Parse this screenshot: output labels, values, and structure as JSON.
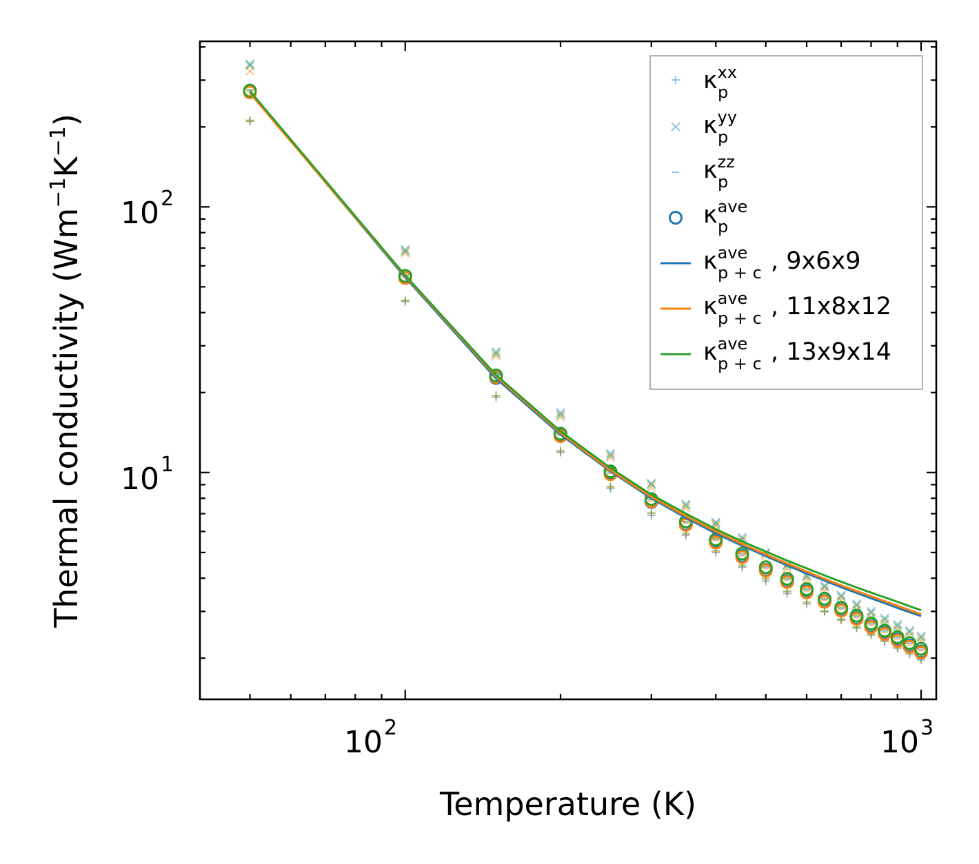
{
  "chart_data": {
    "type": "scatter",
    "xscale": "log",
    "yscale": "log",
    "xlabel": "Temperature (K)",
    "ylabel": "Thermal conductivity (Wm",
    "ylabel_parts": [
      "Thermal conductivity (Wm",
      "−1",
      "K",
      "−1",
      ")"
    ],
    "xlim": [
      40,
      1070
    ],
    "ylim": [
      1.4,
      420
    ],
    "xticks": [
      {
        "base": "10",
        "exp": "2",
        "value": 100
      },
      {
        "base": "10",
        "exp": "3",
        "value": 1000
      }
    ],
    "yticks": [
      {
        "base": "10",
        "exp": "1",
        "value": 10
      },
      {
        "base": "10",
        "exp": "2",
        "value": 100
      }
    ],
    "temperatures": [
      50,
      100,
      150,
      200,
      250,
      300,
      350,
      400,
      450,
      500,
      550,
      600,
      650,
      700,
      750,
      800,
      850,
      900,
      950,
      1000
    ],
    "run_colors": [
      "#1f77b4",
      "#ff7f0e",
      "#2ca02c"
    ],
    "run_names": [
      "9x6x9",
      "11x8x12",
      "13x9x14"
    ],
    "series": [
      {
        "name": "kappa_xx",
        "marker": "plus",
        "runs": [
          [
            210,
            44,
            19.2,
            11.9,
            8.7,
            6.9,
            5.8,
            5.0,
            4.4,
            3.9,
            3.5,
            3.2,
            3.0,
            2.78,
            2.6,
            2.44,
            2.31,
            2.18,
            2.07,
            1.97
          ],
          [
            210,
            44.3,
            19.4,
            12.0,
            8.8,
            7.0,
            5.85,
            5.03,
            4.43,
            3.95,
            3.55,
            3.22,
            2.98,
            2.78,
            2.6,
            2.45,
            2.32,
            2.19,
            2.09,
            1.99
          ],
          [
            212,
            44.5,
            19.5,
            12.1,
            8.85,
            7.05,
            5.9,
            5.08,
            4.48,
            4.0,
            3.58,
            3.26,
            3.01,
            2.81,
            2.62,
            2.47,
            2.34,
            2.21,
            2.1,
            2.0
          ]
        ]
      },
      {
        "name": "kappa_yy",
        "marker": "x",
        "runs": [
          [
            345,
            69,
            28.5,
            16.8,
            11.8,
            9.1,
            7.6,
            6.5,
            5.7,
            5.0,
            4.5,
            4.1,
            3.75,
            3.45,
            3.2,
            3.0,
            2.83,
            2.68,
            2.54,
            2.42
          ],
          [
            325,
            67,
            27.5,
            16.2,
            11.4,
            8.8,
            7.35,
            6.3,
            5.5,
            4.85,
            4.35,
            3.95,
            3.6,
            3.3,
            3.05,
            2.85,
            2.7,
            2.55,
            2.43,
            2.32
          ],
          [
            340,
            68,
            28.0,
            16.5,
            11.6,
            9.0,
            7.5,
            6.4,
            5.6,
            4.95,
            4.45,
            4.05,
            3.7,
            3.4,
            3.15,
            2.95,
            2.78,
            2.63,
            2.5,
            2.38
          ]
        ]
      },
      {
        "name": "kappa_zz",
        "marker": "hline",
        "runs": [
          [
            275,
            55,
            23.2,
            13.9,
            10.0,
            7.9,
            6.5,
            5.6,
            4.9,
            4.4,
            3.97,
            3.62,
            3.33,
            3.08,
            2.87,
            2.69,
            2.53,
            2.39,
            2.27,
            2.16
          ],
          [
            272,
            54.5,
            23.0,
            13.8,
            9.9,
            7.8,
            6.45,
            5.55,
            4.85,
            4.35,
            3.92,
            3.58,
            3.3,
            3.05,
            2.84,
            2.66,
            2.5,
            2.36,
            2.24,
            2.13
          ],
          [
            276,
            55.5,
            23.4,
            14.0,
            10.1,
            7.95,
            6.55,
            5.65,
            4.95,
            4.45,
            4.0,
            3.65,
            3.36,
            3.11,
            2.9,
            2.72,
            2.56,
            2.42,
            2.3,
            2.19
          ]
        ]
      },
      {
        "name": "kappa_ave",
        "marker": "circle",
        "runs": [
          [
            272,
            54.5,
            22.7,
            13.8,
            9.95,
            7.75,
            6.4,
            5.5,
            4.85,
            4.3,
            3.9,
            3.57,
            3.28,
            3.04,
            2.83,
            2.64,
            2.49,
            2.35,
            2.23,
            2.12
          ],
          [
            270,
            54,
            22.9,
            13.7,
            9.85,
            7.8,
            6.35,
            5.45,
            4.8,
            4.27,
            3.87,
            3.54,
            3.26,
            3.02,
            2.81,
            2.62,
            2.47,
            2.33,
            2.21,
            2.1
          ],
          [
            274,
            55,
            23.2,
            14.0,
            10.1,
            7.95,
            6.55,
            5.6,
            4.95,
            4.4,
            3.98,
            3.64,
            3.35,
            3.1,
            2.89,
            2.7,
            2.54,
            2.4,
            2.28,
            2.17
          ]
        ]
      },
      {
        "name": "kappa_pc_9x6x9",
        "marker": "line",
        "color": "#1f77b4",
        "values": [
          270,
          54.2,
          22.6,
          13.9,
          10.1,
          8.0,
          6.75,
          5.9,
          5.3,
          4.85,
          4.47,
          4.17,
          3.92,
          3.7,
          3.52,
          3.36,
          3.22,
          3.09,
          2.98,
          2.88
        ]
      },
      {
        "name": "kappa_pc_11x8x12",
        "marker": "line",
        "color": "#ff7f0e",
        "values": [
          268,
          54.8,
          23.0,
          14.1,
          10.2,
          8.1,
          6.85,
          6.0,
          5.38,
          4.92,
          4.54,
          4.24,
          3.98,
          3.76,
          3.58,
          3.42,
          3.28,
          3.15,
          3.03,
          2.93
        ]
      },
      {
        "name": "kappa_pc_13x9x14",
        "marker": "line",
        "color": "#2ca02c",
        "values": [
          273,
          55.2,
          23.3,
          14.3,
          10.4,
          8.25,
          7.0,
          6.12,
          5.5,
          5.04,
          4.66,
          4.36,
          4.1,
          3.88,
          3.69,
          3.53,
          3.39,
          3.26,
          3.14,
          3.03
        ]
      }
    ],
    "legend": {
      "placement": "top-right",
      "entries": [
        {
          "marker": "plus",
          "color": "#1f77b4",
          "sym": "κ",
          "sub": "p",
          "sup": "xx",
          "suffix": ""
        },
        {
          "marker": "x",
          "color": "#1f77b4",
          "sym": "κ",
          "sub": "p",
          "sup": "yy",
          "suffix": ""
        },
        {
          "marker": "hline",
          "color": "#1f77b4",
          "sym": "κ",
          "sub": "p",
          "sup": "zz",
          "suffix": ""
        },
        {
          "marker": "circle",
          "color": "#1f77b4",
          "sym": "κ",
          "sub": "p",
          "sup": "ave",
          "suffix": ""
        },
        {
          "marker": "line",
          "color": "#1f77b4",
          "sym": "κ",
          "sub": "p + c",
          "sup": "ave",
          "suffix": ", 9x6x9"
        },
        {
          "marker": "line",
          "color": "#ff7f0e",
          "sym": "κ",
          "sub": "p + c",
          "sup": "ave",
          "suffix": ", 11x8x12"
        },
        {
          "marker": "line",
          "color": "#2ca02c",
          "sym": "κ",
          "sub": "p + c",
          "sup": "ave",
          "suffix": ", 13x9x14"
        }
      ]
    }
  }
}
